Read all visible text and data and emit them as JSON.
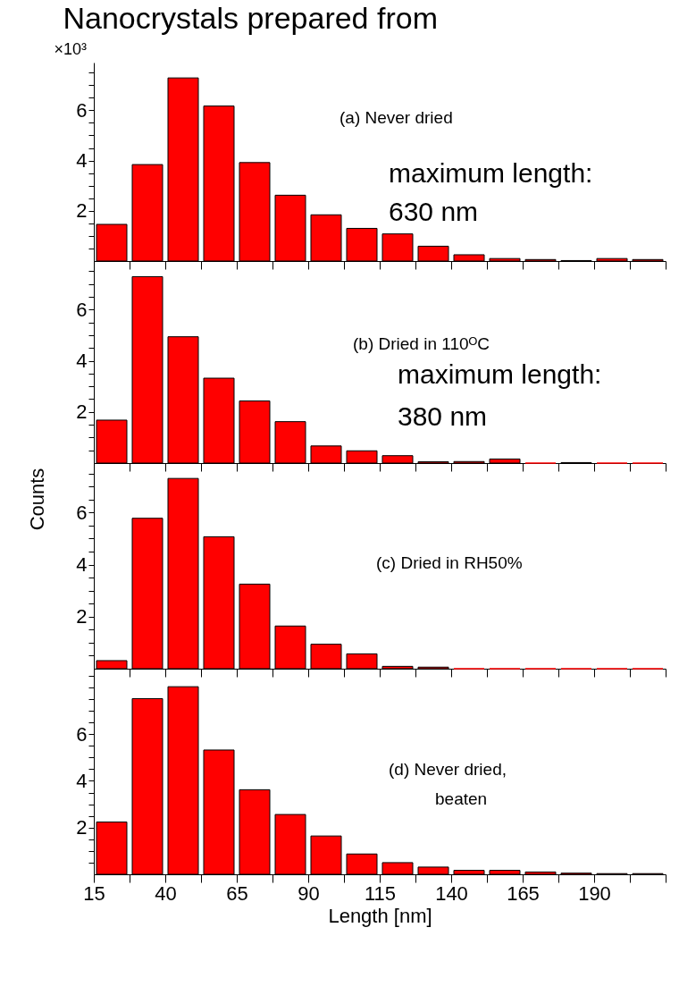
{
  "chart_data": [
    {
      "type": "histogram",
      "title": "Nanocrystals prepared from",
      "color": "#ff0000",
      "bins": [
        15,
        27.5,
        40,
        52.5,
        65,
        77.5,
        90,
        102.5,
        115,
        127.5,
        140,
        152.5,
        165,
        177.5,
        190,
        202.5,
        215
      ],
      "values": [
        1.46,
        3.84,
        7.29,
        6.17,
        3.92,
        2.62,
        1.84,
        1.3,
        1.08,
        0.59,
        0.25,
        0.1,
        0.06,
        0.02,
        0.1,
        0.06
      ],
      "xlim": [
        15,
        215
      ],
      "xticks": [
        15,
        {
          "value": 27.5,
          "label": null
        },
        40,
        {
          "value": 52.5,
          "label": null
        },
        65,
        {
          "value": 77.5,
          "label": null
        },
        90,
        {
          "value": 102.5,
          "label": null
        },
        115,
        {
          "value": 127.5,
          "label": null
        },
        140,
        {
          "value": 152.5,
          "label": null
        },
        165,
        {
          "value": 177.5,
          "label": null
        },
        190,
        {
          "value": 202.5,
          "label": null
        },
        {
          "value": 215,
          "label": null
        }
      ],
      "ylim": [
        0,
        7.9
      ],
      "yticks": [
        {
          "value": 0.5,
          "label": null
        },
        {
          "value": 1,
          "label": null
        },
        {
          "value": 1.5,
          "label": null
        },
        2,
        {
          "value": 2.5,
          "label": null
        },
        {
          "value": 3,
          "label": null
        },
        {
          "value": 3.5,
          "label": null
        },
        4,
        {
          "value": 4.5,
          "label": null
        },
        {
          "value": 5,
          "label": null
        },
        {
          "value": 5.5,
          "label": null
        },
        6,
        {
          "value": 6.5,
          "label": null
        },
        {
          "value": 7,
          "label": null
        },
        {
          "value": 7.5,
          "label": null
        }
      ],
      "tick_labels": "y",
      "annotations": [
        "×10³",
        "(a) Never dried",
        "maximum length:",
        "630 nm"
      ]
    },
    {
      "type": "histogram",
      "color": "#ff0000",
      "ylabel": "Counts",
      "bins": [
        15,
        27.5,
        40,
        52.5,
        65,
        77.5,
        90,
        102.5,
        115,
        127.5,
        140,
        152.5,
        165,
        177.5,
        190,
        202.5,
        215
      ],
      "values": [
        1.68,
        7.29,
        4.94,
        3.32,
        2.43,
        1.62,
        0.67,
        0.48,
        0.29,
        0.05,
        0.06,
        0.16,
        0,
        0.02,
        0,
        0
      ],
      "xlim": [
        15,
        215
      ],
      "xticks": [
        15,
        {
          "value": 27.5,
          "label": null
        },
        40,
        {
          "value": 52.5,
          "label": null
        },
        65,
        {
          "value": 77.5,
          "label": null
        },
        90,
        {
          "value": 102.5,
          "label": null
        },
        115,
        {
          "value": 127.5,
          "label": null
        },
        140,
        {
          "value": 152.5,
          "label": null
        },
        165,
        {
          "value": 177.5,
          "label": null
        },
        190,
        {
          "value": 202.5,
          "label": null
        },
        {
          "value": 215,
          "label": null
        }
      ],
      "ylim": [
        0,
        7.9
      ],
      "yticks": [
        {
          "value": 0.5,
          "label": null
        },
        {
          "value": 1,
          "label": null
        },
        {
          "value": 1.5,
          "label": null
        },
        2,
        {
          "value": 2.5,
          "label": null
        },
        {
          "value": 3,
          "label": null
        },
        {
          "value": 3.5,
          "label": null
        },
        4,
        {
          "value": 4.5,
          "label": null
        },
        {
          "value": 5,
          "label": null
        },
        {
          "value": 5.5,
          "label": null
        },
        6,
        {
          "value": 6.5,
          "label": null
        },
        {
          "value": 7,
          "label": null
        },
        {
          "value": 7.5,
          "label": null
        }
      ],
      "tick_labels": "y",
      "annotations": [
        "(b) Dried in 110ᴼC",
        "maximum length:",
        "380 nm"
      ]
    },
    {
      "type": "histogram",
      "color": "#ff0000",
      "bins": [
        15,
        27.5,
        40,
        52.5,
        65,
        77.5,
        90,
        102.5,
        115,
        127.5,
        140,
        152.5,
        165,
        177.5,
        190,
        202.5,
        215
      ],
      "values": [
        0.31,
        5.78,
        7.31,
        5.07,
        3.25,
        1.64,
        0.94,
        0.57,
        0.09,
        0.06,
        0,
        0,
        0,
        0,
        0,
        0
      ],
      "xlim": [
        15,
        215
      ],
      "xticks": [
        15,
        {
          "value": 27.5,
          "label": null
        },
        40,
        {
          "value": 52.5,
          "label": null
        },
        65,
        {
          "value": 77.5,
          "label": null
        },
        90,
        {
          "value": 102.5,
          "label": null
        },
        115,
        {
          "value": 127.5,
          "label": null
        },
        140,
        {
          "value": 152.5,
          "label": null
        },
        165,
        {
          "value": 177.5,
          "label": null
        },
        190,
        {
          "value": 202.5,
          "label": null
        },
        {
          "value": 215,
          "label": null
        }
      ],
      "ylim": [
        0,
        7.9
      ],
      "yticks": [
        {
          "value": 0.5,
          "label": null
        },
        {
          "value": 1,
          "label": null
        },
        {
          "value": 1.5,
          "label": null
        },
        2,
        {
          "value": 2.5,
          "label": null
        },
        {
          "value": 3,
          "label": null
        },
        {
          "value": 3.5,
          "label": null
        },
        4,
        {
          "value": 4.5,
          "label": null
        },
        {
          "value": 5,
          "label": null
        },
        {
          "value": 5.5,
          "label": null
        },
        6,
        {
          "value": 6.5,
          "label": null
        },
        {
          "value": 7,
          "label": null
        },
        {
          "value": 7.5,
          "label": null
        }
      ],
      "tick_labels": "y",
      "annotations": [
        "(c) Dried in RH50%"
      ]
    },
    {
      "type": "histogram",
      "color": "#ff0000",
      "xlabel": "Length [nm]",
      "bins": [
        15,
        27.5,
        40,
        52.5,
        65,
        77.5,
        90,
        102.5,
        115,
        127.5,
        140,
        152.5,
        165,
        177.5,
        190,
        202.5,
        215
      ],
      "values": [
        2.24,
        7.52,
        8.03,
        5.32,
        3.62,
        2.56,
        1.64,
        0.87,
        0.5,
        0.31,
        0.17,
        0.17,
        0.1,
        0.05,
        0.03,
        0.03
      ],
      "xlim": [
        15,
        215
      ],
      "xticks": [
        15,
        {
          "value": 27.5,
          "label": null
        },
        40,
        {
          "value": 52.5,
          "label": null
        },
        65,
        {
          "value": 77.5,
          "label": null
        },
        90,
        {
          "value": 102.5,
          "label": null
        },
        115,
        {
          "value": 127.5,
          "label": null
        },
        140,
        {
          "value": 152.5,
          "label": null
        },
        165,
        {
          "value": 177.5,
          "label": null
        },
        190,
        {
          "value": 202.5,
          "label": null
        },
        {
          "value": 215,
          "label": null
        }
      ],
      "ylim": [
        0,
        8.8
      ],
      "yticks": [
        {
          "value": 0.5,
          "label": null
        },
        {
          "value": 1,
          "label": null
        },
        {
          "value": 1.5,
          "label": null
        },
        2,
        {
          "value": 2.5,
          "label": null
        },
        {
          "value": 3,
          "label": null
        },
        {
          "value": 3.5,
          "label": null
        },
        4,
        {
          "value": 4.5,
          "label": null
        },
        {
          "value": 5,
          "label": null
        },
        {
          "value": 5.5,
          "label": null
        },
        6,
        {
          "value": 6.5,
          "label": null
        },
        {
          "value": 7,
          "label": null
        },
        {
          "value": 7.5,
          "label": null
        },
        {
          "value": 8,
          "label": null
        },
        {
          "value": 8.5,
          "label": null
        }
      ],
      "annotations": [
        "(d) Never dried,",
        "beaten"
      ]
    }
  ]
}
